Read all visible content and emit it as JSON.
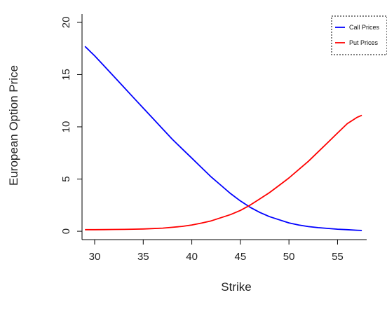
{
  "chart_data": {
    "type": "line",
    "title": "",
    "xlabel": "Strike",
    "ylabel": "European Option Price",
    "xlim": [
      28.7,
      58.0
    ],
    "ylim": [
      -0.8,
      20.8
    ],
    "xticks": [
      30,
      35,
      40,
      45,
      50,
      55
    ],
    "yticks": [
      0,
      5,
      10,
      15,
      20
    ],
    "xtick_labels": [
      "30",
      "35",
      "40",
      "45",
      "50",
      "55"
    ],
    "ytick_labels": [
      "0",
      "5",
      "10",
      "15",
      "20"
    ],
    "grid": false,
    "legend_position": "top-right",
    "x": [
      29,
      30,
      31,
      32,
      33,
      34,
      35,
      36,
      37,
      38,
      39,
      40,
      41,
      42,
      43,
      44,
      45,
      46,
      47,
      48,
      49,
      50,
      51,
      52,
      53,
      54,
      55,
      56,
      57,
      57.5
    ],
    "series": [
      {
        "name": "Call Prices",
        "color": "#0000ff",
        "values": [
          17.7,
          16.8,
          15.8,
          14.8,
          13.8,
          12.8,
          11.8,
          10.8,
          9.8,
          8.8,
          7.9,
          7.0,
          6.1,
          5.2,
          4.4,
          3.6,
          2.9,
          2.3,
          1.8,
          1.4,
          1.1,
          0.8,
          0.6,
          0.45,
          0.35,
          0.27,
          0.2,
          0.15,
          0.1,
          0.08
        ]
      },
      {
        "name": "Put Prices",
        "color": "#ff0000",
        "values": [
          0.15,
          0.15,
          0.16,
          0.17,
          0.18,
          0.2,
          0.22,
          0.26,
          0.3,
          0.38,
          0.47,
          0.6,
          0.78,
          1.0,
          1.3,
          1.6,
          2.0,
          2.5,
          3.1,
          3.7,
          4.4,
          5.1,
          5.9,
          6.7,
          7.6,
          8.5,
          9.4,
          10.3,
          10.9,
          11.1
        ]
      }
    ]
  }
}
